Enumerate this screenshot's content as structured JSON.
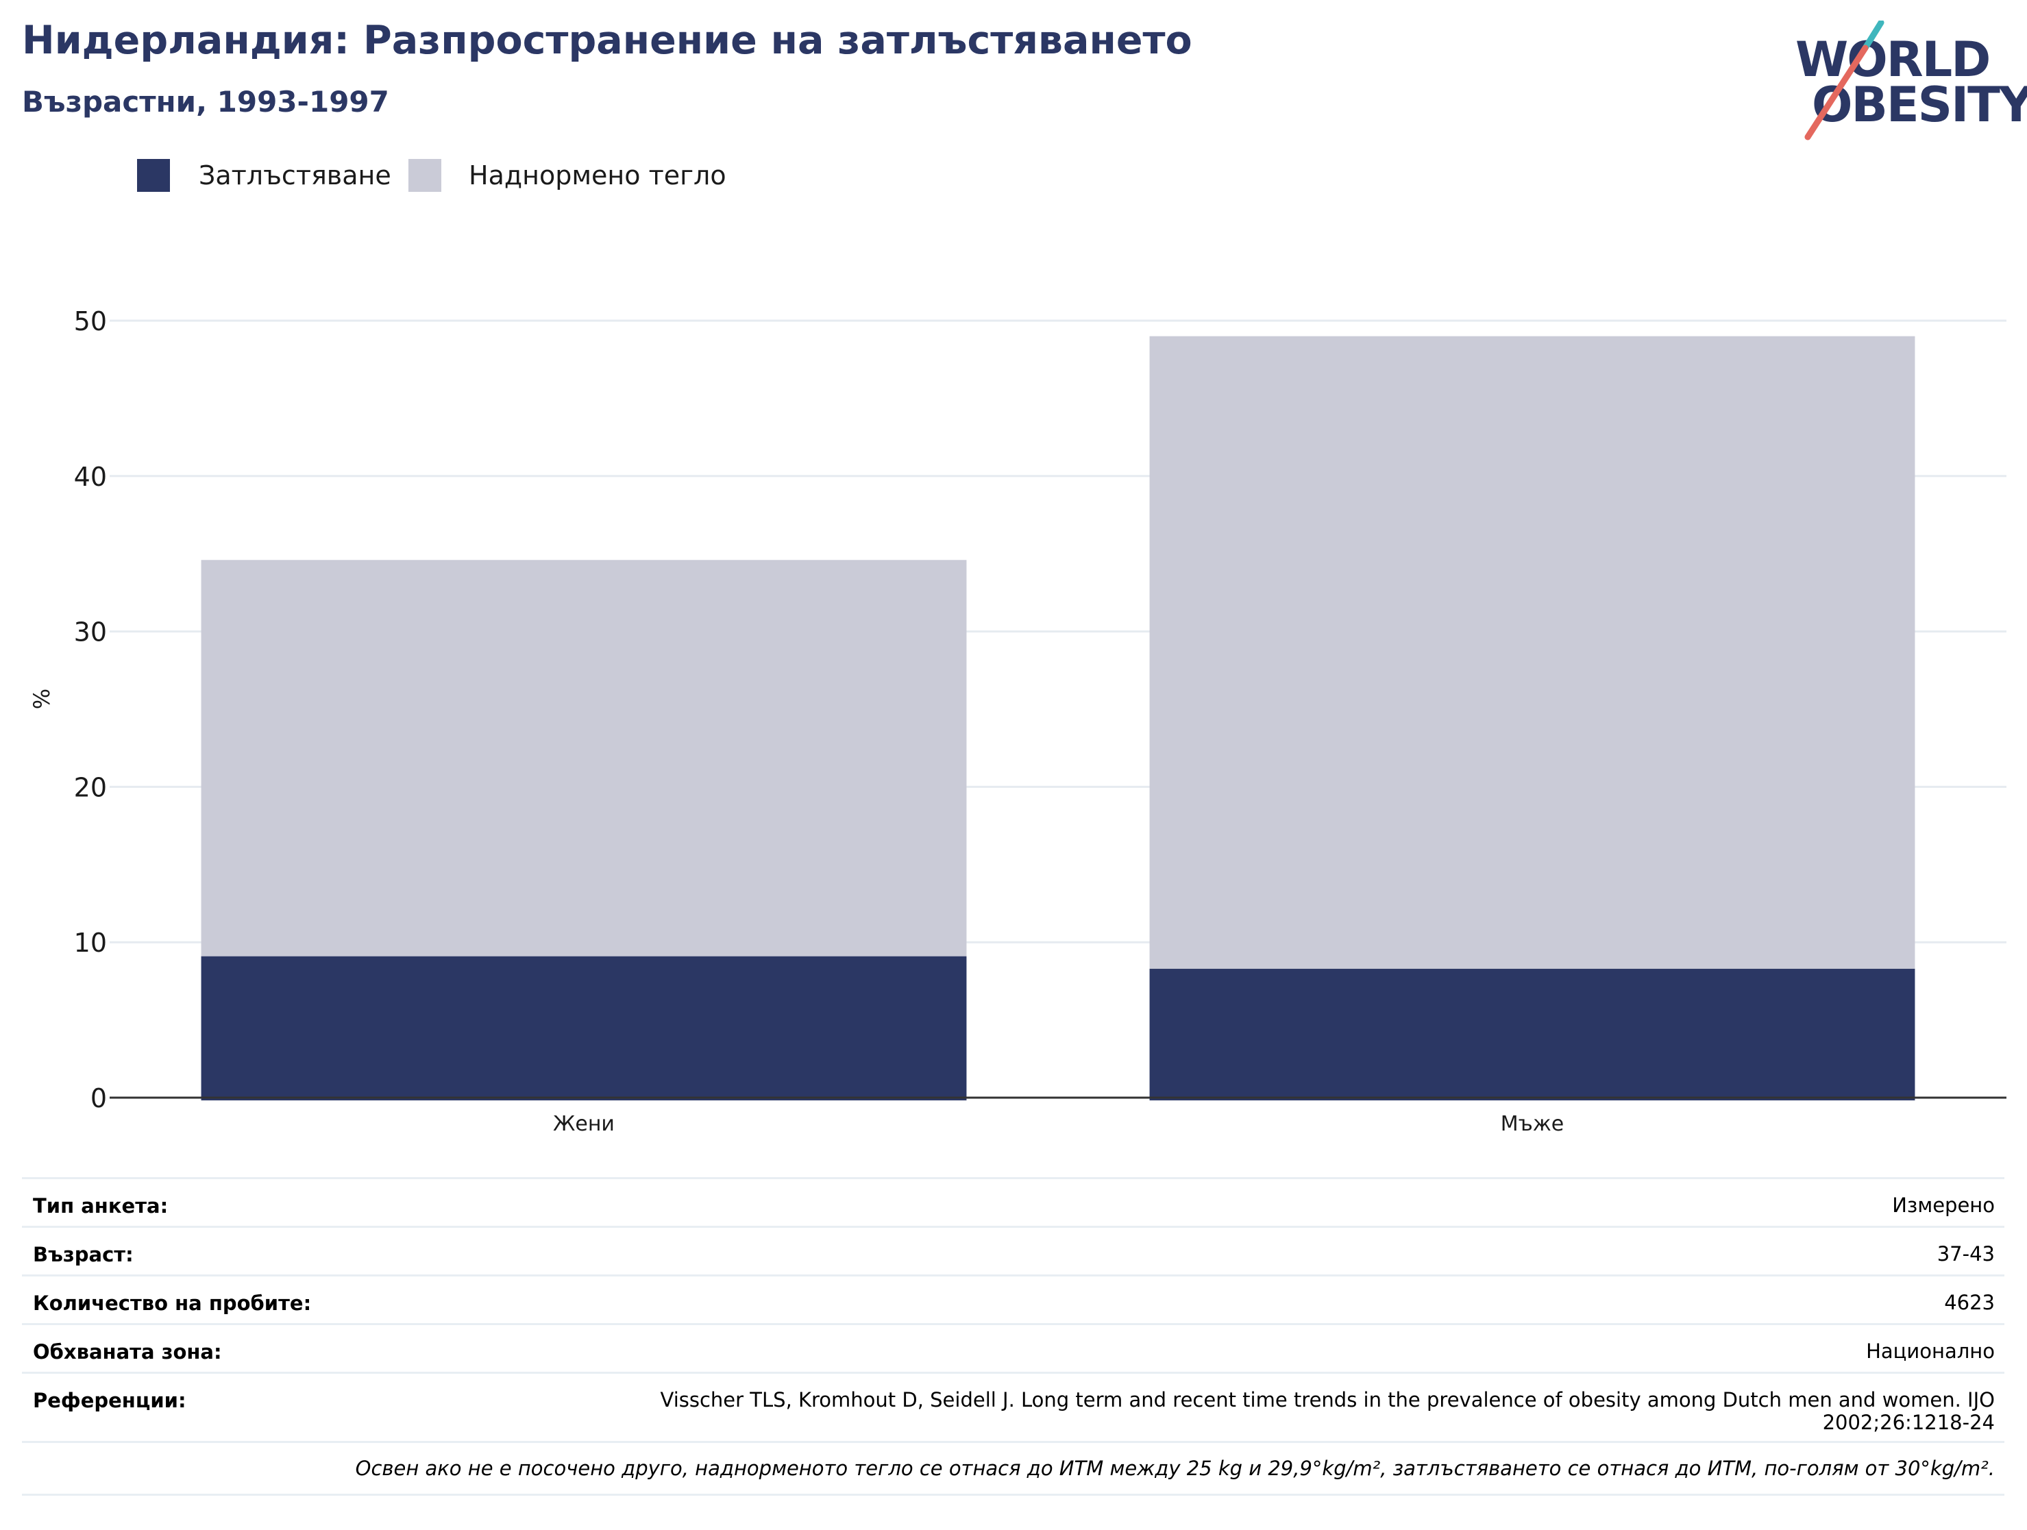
{
  "header": {
    "title": "Нидерландия: Разпространение на затлъстяването",
    "subtitle": "Възрастни, 1993-1997"
  },
  "logo": {
    "line1": "WORLD",
    "line2": "OBESITY",
    "colors": {
      "text": "#2b3764",
      "slash_top": "#3fb6bd",
      "slash_bottom": "#e4685e"
    }
  },
  "legend": [
    {
      "label": "Затлъстяване",
      "color": "#2b3764"
    },
    {
      "label": "Наднормено тегло",
      "color": "#cacbd7"
    }
  ],
  "chart_data": {
    "type": "bar",
    "stacked": true,
    "categories": [
      "Жени",
      "Мъже"
    ],
    "series": [
      {
        "name": "Затлъстяване",
        "values": [
          9.1,
          8.3
        ],
        "color": "#2b3764"
      },
      {
        "name": "Наднормено тегло",
        "values": [
          25.5,
          40.7
        ],
        "color": "#cacbd7"
      }
    ],
    "ylabel": "%",
    "xlabel": "",
    "ylim": [
      0,
      50
    ],
    "yticks": [
      "0",
      "10",
      "20",
      "30",
      "40",
      "50"
    ],
    "grid": true,
    "legend_position": "top-left"
  },
  "meta": {
    "survey_type": {
      "label": "Тип анкета:",
      "value": "Измерено"
    },
    "age": {
      "label": "Възраст:",
      "value": "37-43"
    },
    "sample_size": {
      "label": "Количество на пробите:",
      "value": "4623"
    },
    "area": {
      "label": "Обхваната зона:",
      "value": "Национално"
    },
    "references": {
      "label": "Референции:",
      "value_line1": "Visscher TLS, Kromhout D, Seidell J. Long term and recent time trends in the prevalence of obesity among Dutch men and women. IJO",
      "value_line2": "2002;26:1218-24"
    },
    "footnote": "Освен ако не е посочено друго, наднорменото тегло се отнася до ИТМ между 25 kg и 29,9°kg/m², затлъстяването се отнася до ИТМ, по-голям от 30°kg/m²."
  }
}
